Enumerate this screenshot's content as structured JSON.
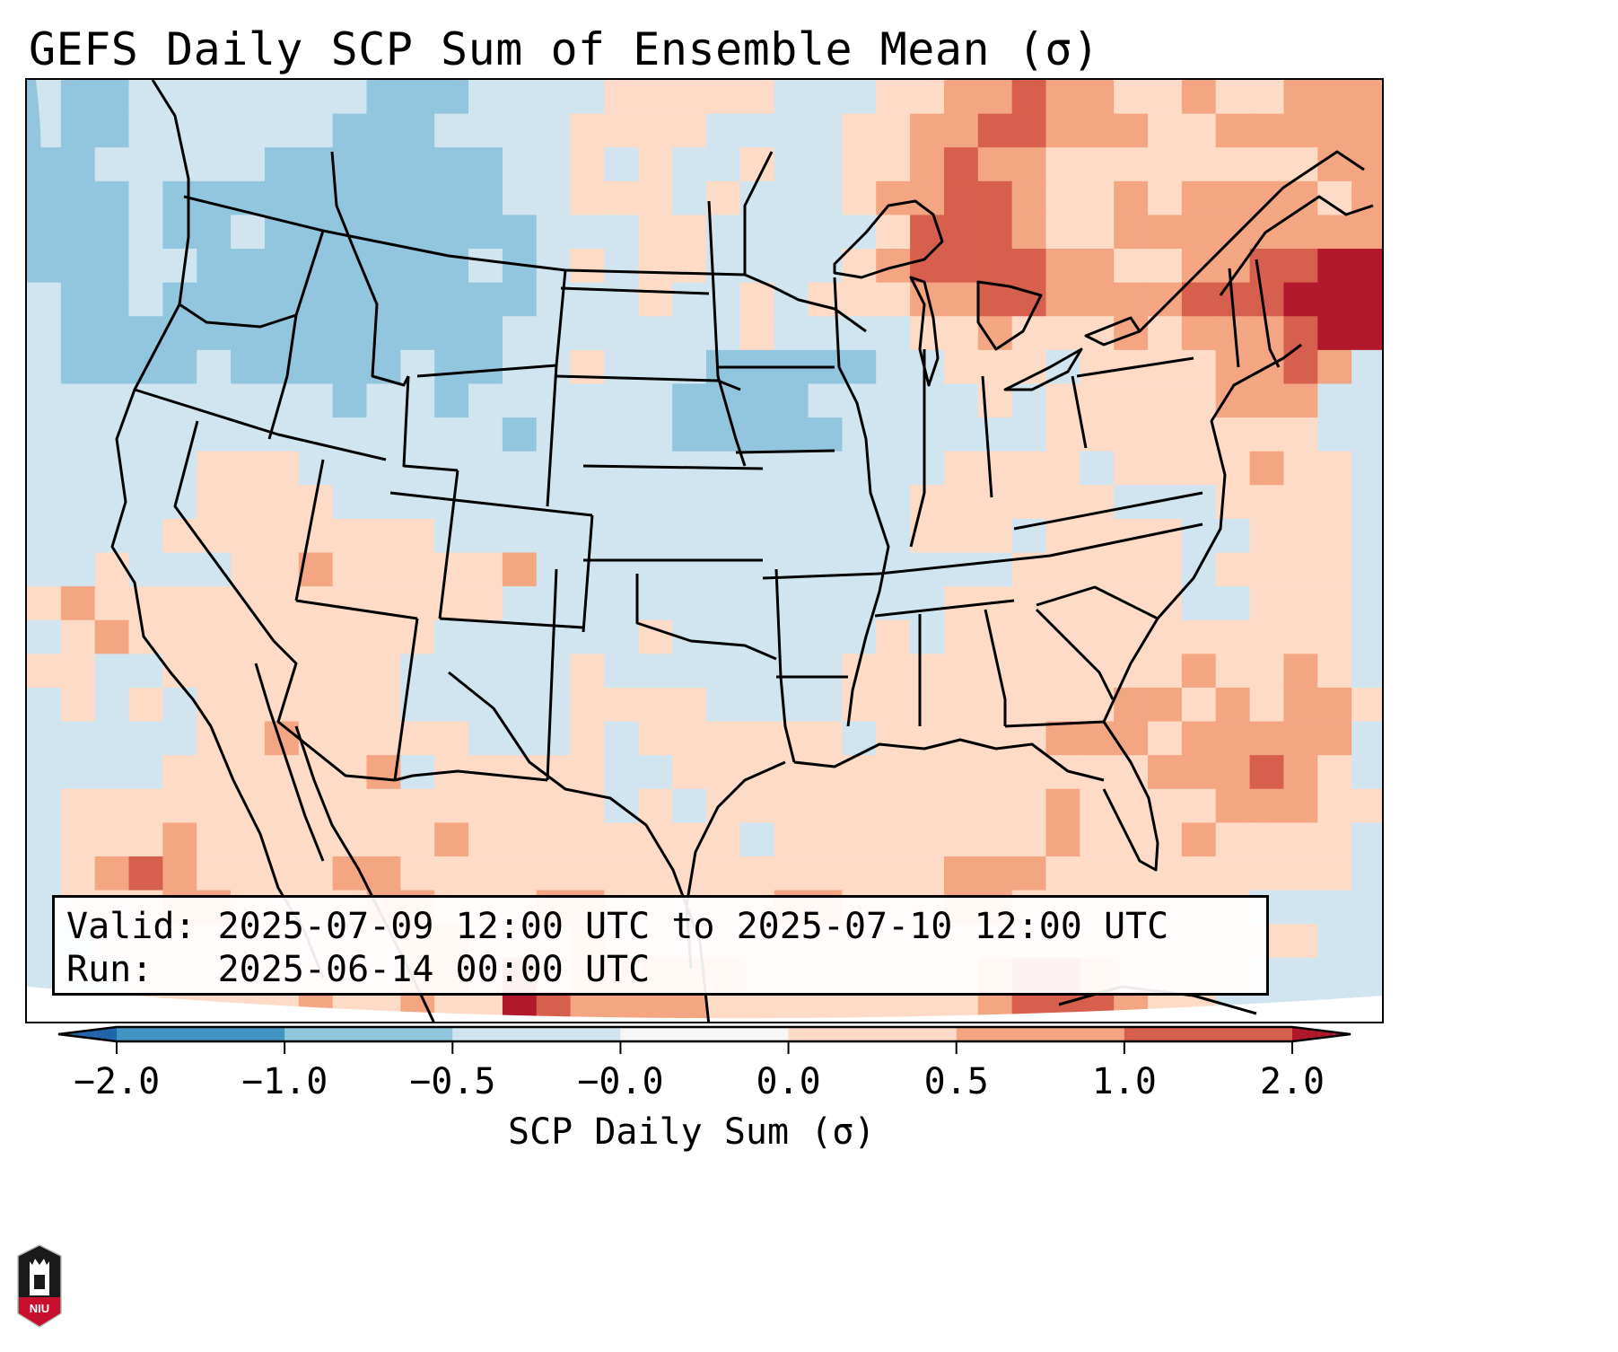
{
  "title": "GEFS Daily SCP Sum of Ensemble Mean (σ)",
  "info": {
    "valid_label": "Valid:",
    "valid_value": "2025-07-09 12:00 UTC to 2025-07-10 12:00 UTC",
    "run_label": "Run:",
    "run_value": "2025-06-14 00:00 UTC"
  },
  "colorbar": {
    "label": "SCP Daily Sum (σ)",
    "ticks": [
      "-2.0",
      "-1.0",
      "-0.5",
      "-0.0",
      "0.0",
      "0.5",
      "1.0",
      "2.0"
    ],
    "bins": [
      {
        "range": "< -2.0",
        "color": "#2166ac"
      },
      {
        "range": "-2.0 to -1.0",
        "color": "#4393c3"
      },
      {
        "range": "-1.0 to -0.5",
        "color": "#92c5de"
      },
      {
        "range": "-0.5 to -0.0",
        "color": "#d1e5f0"
      },
      {
        "range": "-0.0 to 0.0",
        "color": "#f7f7f7"
      },
      {
        "range": "0.0 to 0.5",
        "color": "#fddbc7"
      },
      {
        "range": "0.5 to 1.0",
        "color": "#f4a582"
      },
      {
        "range": "1.0 to 2.0",
        "color": "#d6604d"
      },
      {
        "range": "> 2.0",
        "color": "#b2182b"
      }
    ],
    "extend": "both"
  },
  "logo": {
    "text": "NIU",
    "name": "Northern Illinois University"
  },
  "chart_data": {
    "type": "heatmap",
    "title": "GEFS Daily SCP Sum of Ensemble Mean (σ)",
    "colorbar_label": "SCP Daily Sum (σ)",
    "levels": [
      -2.0,
      -1.0,
      -0.5,
      -0.0,
      0.0,
      0.5,
      1.0,
      2.0
    ],
    "category_legend": {
      "1": "-1.0 to -0.5",
      "2": "-0.5 to 0.0",
      "3": "0.0 to 0.5",
      "4": "0.5 to 1.0",
      "5": "1.0 to 2.0",
      "6": "> 2.0"
    },
    "grid_note": "approximate field, 40 columns (west→east) × 28 rows (north→south) over the contiguous US domain",
    "grid": [
      "2112222222111222233333222334454433433444",
      "2112222221112222333322223344554443344444",
      "1122222111111122323223223345443333333344",
      "1112111111111122333232223445543343444434",
      "1112112111111112223322222355543344444444",
      "1112211111111212323322223455554433445566",
      "2112111111111112223223233344554444555666",
      "2111111111111122222223222233433343444566",
      "2111121111121122322211111223332333344542",
      "2222222221221222222111122222323333344422",
      "2222222222222212222111112222223333333322",
      "2222233322222222222222222223333233334332",
      "2222233332222222222222222233333322233332",
      "2222333333332222222222222233323333223332",
      "2232223343333342222222222222233333233332",
      "3433333333333322222222222223333333223332",
      "2343333333332222223222222323333333333332",
      "3322333333322222322222223333333333433432",
      "2323233333322222333322223333333344343443",
      "2222233433333222323333332333334443444442",
      "2222333333423333322333333333333334445432",
      "2333333333333333323233333333334333344433",
      "2333433333334333333332333333334333433332",
      "2345433334433333333333333334443333333332",
      "2333443333443334433333443334433333332222",
      "2233333333344333433333333333333333333322",
      "2223333333344353444443333333455433332222",
      "1223333343343365444433333333455543322222"
    ]
  }
}
